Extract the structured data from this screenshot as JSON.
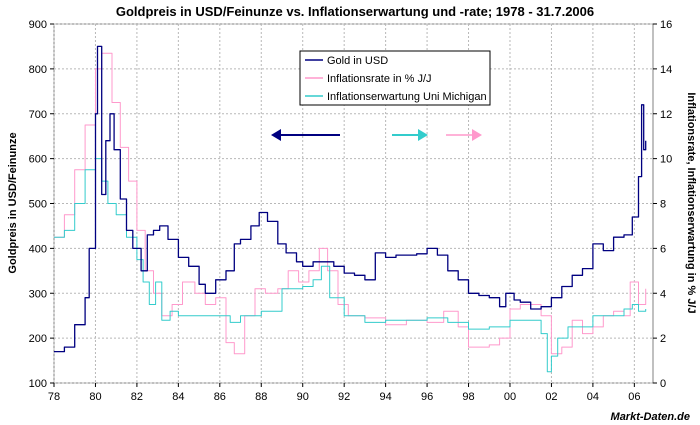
{
  "chart_data": {
    "type": "line",
    "title": "Goldpreis in USD/Feinunze vs. Inflationserwartung und -rate; 1978 - 31.7.2006",
    "ylabel_left": "Goldpreis in USD/Feinunze",
    "ylabel_right": "Inflationsrate, Inflationserwartung in % J/J",
    "source": "Markt-Daten.de",
    "x_ticks": [
      "78",
      "80",
      "82",
      "84",
      "86",
      "88",
      "90",
      "92",
      "94",
      "96",
      "98",
      "00",
      "02",
      "04",
      "06"
    ],
    "y_left_ticks": [
      "100",
      "200",
      "300",
      "400",
      "500",
      "600",
      "700",
      "800",
      "900"
    ],
    "y_right_ticks": [
      "0",
      "2",
      "4",
      "6",
      "8",
      "10",
      "12",
      "14",
      "16"
    ],
    "xlim": [
      1978,
      2006.9
    ],
    "ylim_left": [
      100,
      900
    ],
    "ylim_right": [
      0,
      16
    ],
    "grid": true,
    "legend_position": "top-center",
    "series": [
      {
        "name": "Gold in USD",
        "axis": "left",
        "color": "#000080",
        "x": [
          1978.0,
          1978.5,
          1979.0,
          1979.5,
          1979.7,
          1980.0,
          1980.1,
          1980.3,
          1980.5,
          1980.7,
          1980.9,
          1981.2,
          1981.5,
          1981.8,
          1982.2,
          1982.5,
          1982.8,
          1983.1,
          1983.5,
          1984.0,
          1984.5,
          1985.0,
          1985.3,
          1985.8,
          1986.3,
          1986.7,
          1987.0,
          1987.5,
          1987.9,
          1988.3,
          1988.8,
          1989.2,
          1989.7,
          1990.0,
          1990.5,
          1991.0,
          1991.5,
          1992.0,
          1992.5,
          1993.0,
          1993.5,
          1994.0,
          1994.5,
          1995.0,
          1995.5,
          1996.0,
          1996.5,
          1997.0,
          1997.5,
          1998.0,
          1998.5,
          1999.0,
          1999.5,
          1999.8,
          2000.2,
          2000.5,
          2001.0,
          2001.5,
          2002.0,
          2002.5,
          2003.0,
          2003.5,
          2004.0,
          2004.5,
          2005.0,
          2005.5,
          2005.9,
          2006.2,
          2006.35,
          2006.45,
          2006.55
        ],
        "values": [
          170,
          180,
          230,
          290,
          400,
          700,
          850,
          520,
          640,
          700,
          620,
          510,
          440,
          400,
          350,
          430,
          440,
          450,
          420,
          380,
          360,
          320,
          300,
          330,
          350,
          410,
          420,
          450,
          480,
          460,
          410,
          390,
          370,
          360,
          370,
          370,
          360,
          345,
          340,
          330,
          390,
          380,
          385,
          385,
          388,
          400,
          385,
          350,
          330,
          300,
          295,
          290,
          270,
          300,
          285,
          280,
          265,
          270,
          290,
          315,
          340,
          355,
          410,
          395,
          425,
          430,
          470,
          560,
          720,
          620,
          640
        ]
      },
      {
        "name": "Inflationsrate in % J/J",
        "axis": "right",
        "color": "#ff99cc",
        "x": [
          1978.0,
          1978.5,
          1979.0,
          1979.5,
          1980.0,
          1980.3,
          1980.8,
          1981.2,
          1981.6,
          1982.0,
          1982.4,
          1982.8,
          1983.2,
          1983.7,
          1984.2,
          1984.8,
          1985.3,
          1985.8,
          1986.3,
          1986.7,
          1987.2,
          1987.7,
          1988.2,
          1988.8,
          1989.3,
          1989.8,
          1990.3,
          1990.8,
          1991.2,
          1991.7,
          1992.2,
          1993.0,
          1994.0,
          1995.0,
          1996.0,
          1996.8,
          1997.5,
          1998.0,
          1998.5,
          1999.0,
          1999.5,
          2000.0,
          2000.5,
          2001.0,
          2001.5,
          2002.0,
          2002.5,
          2003.0,
          2003.5,
          2004.0,
          2004.5,
          2005.0,
          2005.5,
          2005.8,
          2006.2,
          2006.55
        ],
        "values": [
          6.5,
          7.5,
          9.5,
          11.5,
          14.0,
          14.7,
          12.5,
          10.5,
          9.0,
          6.8,
          5.0,
          4.0,
          3.0,
          3.5,
          4.5,
          4.0,
          3.5,
          3.8,
          1.8,
          1.3,
          3.0,
          4.2,
          4.0,
          4.2,
          5.0,
          4.5,
          5.0,
          6.0,
          5.0,
          3.5,
          3.0,
          2.9,
          2.6,
          2.8,
          2.7,
          3.2,
          2.5,
          1.6,
          1.6,
          1.7,
          2.0,
          3.3,
          3.5,
          3.5,
          3.0,
          1.3,
          1.6,
          2.8,
          2.2,
          2.5,
          3.0,
          3.2,
          3.0,
          4.5,
          3.5,
          4.2
        ]
      },
      {
        "name": "Inflationserwartung Uni Michigan",
        "axis": "right",
        "color": "#33cccc",
        "x": [
          1978.0,
          1978.5,
          1979.0,
          1979.5,
          1980.0,
          1980.3,
          1980.6,
          1981.0,
          1981.5,
          1982.0,
          1982.3,
          1982.6,
          1982.9,
          1983.2,
          1983.6,
          1984.0,
          1985.0,
          1986.0,
          1986.5,
          1987.0,
          1988.0,
          1989.0,
          1990.0,
          1990.5,
          1990.9,
          1991.3,
          1992.0,
          1993.0,
          1994.0,
          1995.0,
          1996.0,
          1997.0,
          1998.0,
          1999.0,
          2000.0,
          2001.0,
          2001.5,
          2001.8,
          2002.0,
          2002.3,
          2002.8,
          2003.5,
          2004.0,
          2004.5,
          2005.0,
          2005.5,
          2005.9,
          2006.2,
          2006.55
        ],
        "values": [
          6.5,
          6.8,
          8.0,
          9.5,
          10.0,
          9.0,
          8.0,
          7.5,
          6.5,
          5.5,
          4.5,
          3.5,
          4.5,
          2.8,
          3.2,
          3.0,
          3.0,
          3.0,
          2.7,
          3.0,
          3.2,
          4.2,
          4.3,
          4.6,
          5.2,
          3.8,
          3.0,
          2.7,
          2.8,
          2.8,
          2.9,
          2.7,
          2.4,
          2.5,
          2.8,
          2.8,
          2.2,
          0.5,
          1.2,
          2.0,
          2.5,
          2.5,
          3.0,
          3.0,
          3.0,
          3.3,
          3.5,
          3.2,
          3.3
        ]
      }
    ]
  }
}
